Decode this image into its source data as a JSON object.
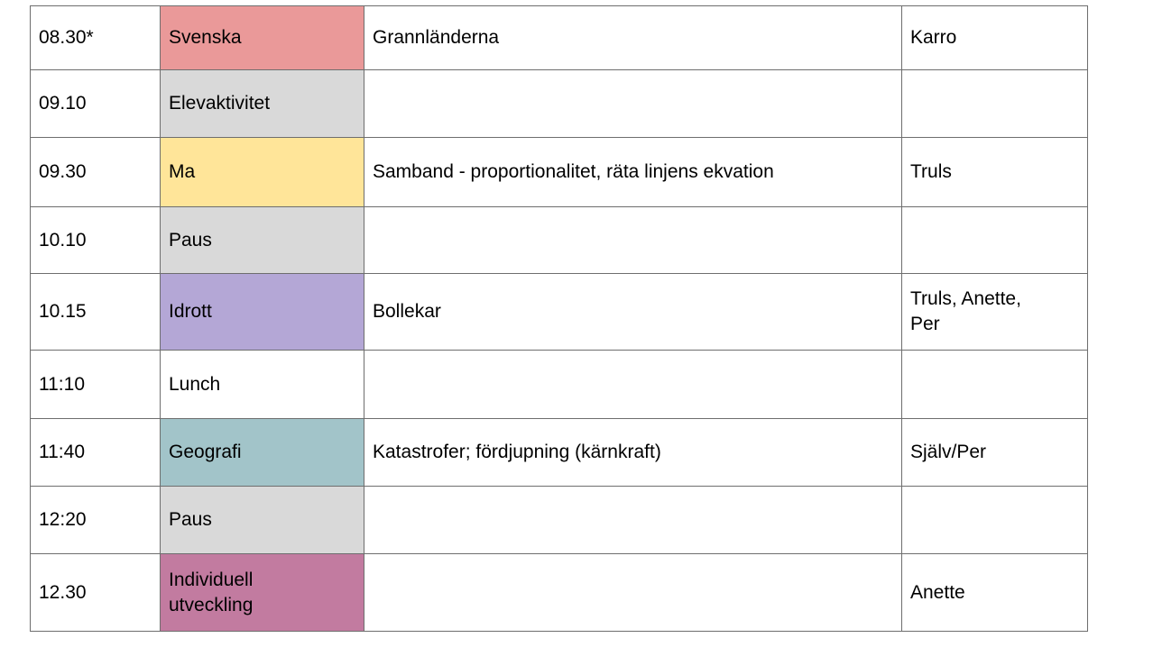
{
  "table": {
    "rows": [
      {
        "time": "08.30*",
        "subject": "Svenska",
        "subject_color": "#ea9999",
        "description": "Grannländerna",
        "staff": "Karro"
      },
      {
        "time": "09.10",
        "subject": "Elevaktivitet",
        "subject_color": "#d9d9d9",
        "description": "",
        "staff": ""
      },
      {
        "time": "09.30",
        "subject": "Ma",
        "subject_color": "#ffe599",
        "description": "Samband - proportionalitet, räta linjens ekvation",
        "staff": "Truls"
      },
      {
        "time": "10.10",
        "subject": "Paus",
        "subject_color": "#d9d9d9",
        "description": "",
        "staff": ""
      },
      {
        "time": "10.15",
        "subject": "Idrott",
        "subject_color": "#b4a7d6",
        "description": "Bollekar",
        "staff": "Truls, Anette, Per"
      },
      {
        "time": "11:10",
        "subject": "Lunch",
        "subject_color": "",
        "description": "",
        "staff": ""
      },
      {
        "time": "11:40",
        "subject": "Geografi",
        "subject_color": "#a2c4c9",
        "description": "Katastrofer; fördjupning (kärnkraft)",
        "staff": "Själv/Per"
      },
      {
        "time": "12:20",
        "subject": "Paus",
        "subject_color": "#d9d9d9",
        "description": "",
        "staff": ""
      },
      {
        "time": "12.30",
        "subject": "Individuell utveckling",
        "subject_color": "#c27ba0",
        "description": "",
        "staff": "Anette"
      }
    ]
  }
}
